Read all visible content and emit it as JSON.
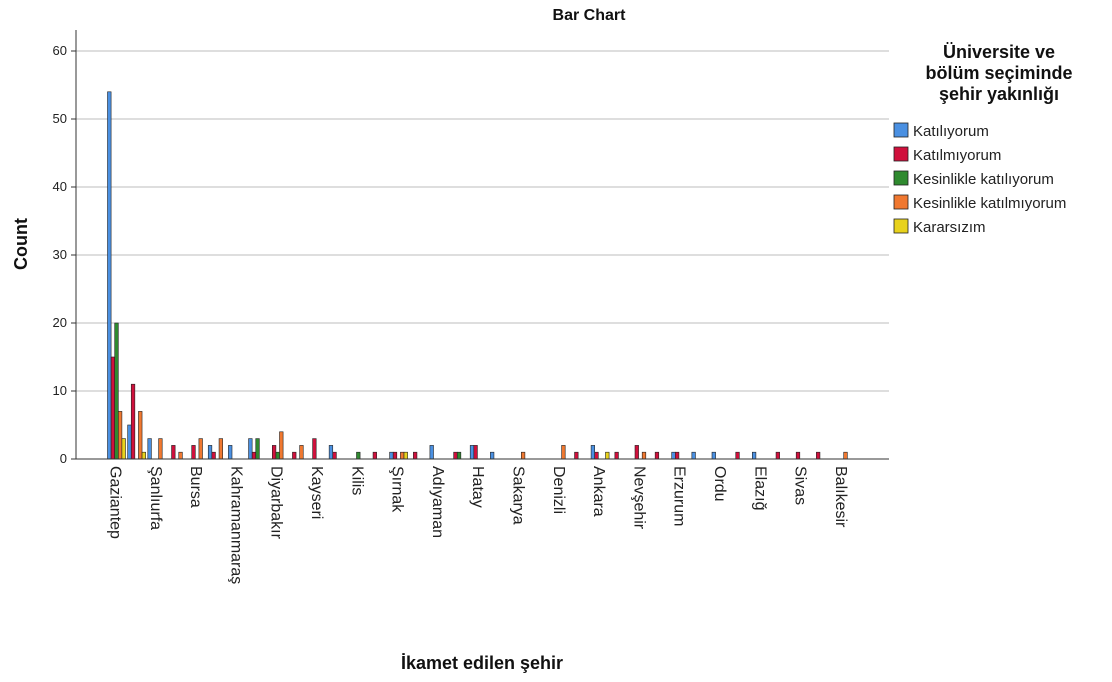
{
  "chart_data": {
    "type": "bar",
    "title": "Bar Chart",
    "xlabel": "İkamet edilen şehir",
    "ylabel": "Count",
    "ylim": [
      0,
      63
    ],
    "yticks": [
      0,
      10,
      20,
      30,
      40,
      50,
      60
    ],
    "grid": true,
    "legend_position": "top-right",
    "legend_title": "Üniversite ve bölüm seçiminde şehir yakınlığı",
    "categories": [
      "Gaziantep",
      "Şanlıurfa",
      "Bursa",
      "Kahramanmaraş",
      "Diyarbakır",
      "Kayseri",
      "Kilis",
      "Şırnak",
      "Adıyaman",
      "Hatay",
      "Sakarya",
      "Denizli",
      "Ankara",
      "Nevşehir",
      "Erzurum",
      "Ordu",
      "Elazığ",
      "Sivas",
      "Balıkesir"
    ],
    "category_labels": [
      "Gaziantep",
      "",
      "Şanlıurfa",
      "",
      "Bursa",
      "",
      "Kahramanmaraş",
      "",
      "Diyarbakır",
      "",
      "Kayseri",
      "",
      "Kilis",
      "",
      "Şırnak",
      "",
      "Adıyaman",
      "",
      "Hatay",
      "",
      "Sakarya",
      "",
      "Denizli",
      "",
      "Ankara",
      "",
      "Nevşehir",
      "",
      "Erzurum",
      "",
      "Ordu",
      "",
      "Elazığ",
      "",
      "Sivas",
      "",
      "Balıkesir",
      ""
    ],
    "category_values": [
      [
        54,
        15,
        20,
        7,
        3
      ],
      [
        5,
        11,
        0,
        7,
        1
      ],
      [
        3,
        0,
        0,
        3,
        0
      ],
      [
        0,
        2,
        0,
        1,
        0
      ],
      [
        0,
        2,
        0,
        3,
        0
      ],
      [
        2,
        1,
        0,
        3,
        0
      ],
      [
        2,
        0,
        0,
        0,
        0
      ],
      [
        3,
        1,
        3,
        0,
        0
      ],
      [
        0,
        2,
        1,
        4,
        0
      ],
      [
        0,
        1,
        0,
        2,
        0
      ],
      [
        0,
        3,
        0,
        0,
        0
      ],
      [
        2,
        1,
        0,
        0,
        0
      ],
      [
        0,
        0,
        1,
        0,
        0
      ],
      [
        0,
        1,
        0,
        0,
        0
      ],
      [
        1,
        1,
        0,
        1,
        1
      ],
      [
        0,
        1,
        0,
        0,
        0
      ],
      [
        2,
        0,
        0,
        0,
        0
      ],
      [
        0,
        1,
        1,
        0,
        0
      ],
      [
        2,
        2,
        0,
        0,
        0
      ],
      [
        1,
        0,
        0,
        0,
        0
      ],
      [
        0,
        0,
        0,
        1,
        0
      ],
      [
        0,
        0,
        0,
        0,
        0
      ],
      [
        0,
        0,
        0,
        2,
        0
      ],
      [
        0,
        1,
        0,
        0,
        0
      ],
      [
        2,
        1,
        0,
        0,
        1
      ],
      [
        0,
        1,
        0,
        0,
        0
      ],
      [
        0,
        2,
        0,
        1,
        0
      ],
      [
        0,
        1,
        0,
        0,
        0
      ],
      [
        1,
        1,
        0,
        0,
        0
      ],
      [
        1,
        0,
        0,
        0,
        0
      ],
      [
        1,
        0,
        0,
        0,
        0
      ],
      [
        0,
        1,
        0,
        0,
        0
      ],
      [
        1,
        0,
        0,
        0,
        0
      ],
      [
        0,
        1,
        0,
        0,
        0
      ],
      [
        0,
        1,
        0,
        0,
        0
      ],
      [
        0,
        1,
        0,
        0,
        0
      ],
      [
        0,
        0,
        0,
        1,
        0
      ],
      [
        0,
        0,
        0,
        0,
        0
      ]
    ],
    "series": [
      {
        "name": "Katılıyorum",
        "color": "#4a90e2"
      },
      {
        "name": "Katılmıyorum",
        "color": "#d0103c"
      },
      {
        "name": "Kesinlikle katılıyorum",
        "color": "#2f8a2f"
      },
      {
        "name": "Kesinlikle katılmıyorum",
        "color": "#f07830"
      },
      {
        "name": "Kararsızım",
        "color": "#e8d21c"
      }
    ]
  }
}
